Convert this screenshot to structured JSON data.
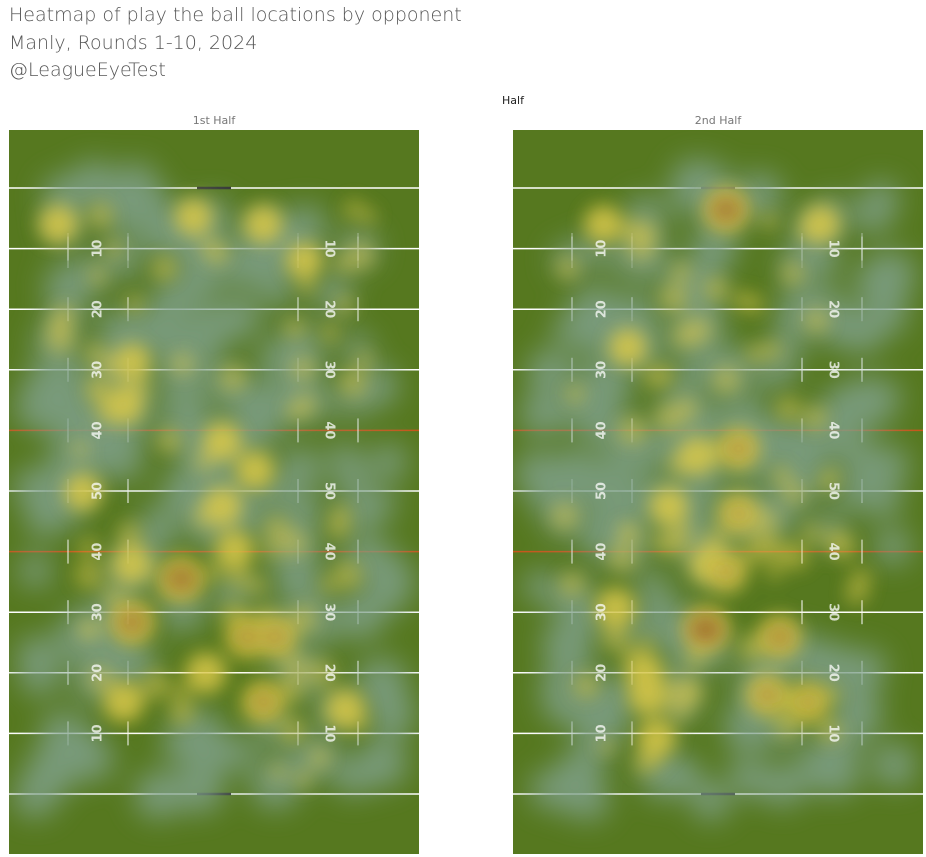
{
  "title": {
    "line1": "Heatmap of play the ball locations by opponent",
    "line2": "Manly, Rounds 1-10, 2024",
    "line3": "@LeagueEyeTest"
  },
  "facet": {
    "header": "Half"
  },
  "colors": {
    "field": "#56781f",
    "lines": "#ffffff",
    "forty_lines": "#c8561a",
    "heat_low": "#7fa08a",
    "heat_mid": "#d9c84a",
    "heat_high": "#8a4a26"
  },
  "chart_data": [
    {
      "type": "heatmap",
      "panel": "1st Half",
      "field_markings": [
        "10",
        "20",
        "30",
        "40",
        "50",
        "40",
        "30",
        "20",
        "10"
      ],
      "hotspots": [
        {
          "x": 0.12,
          "y": 0.13,
          "v": 0.55
        },
        {
          "x": 0.45,
          "y": 0.12,
          "v": 0.5
        },
        {
          "x": 0.62,
          "y": 0.13,
          "v": 0.55
        },
        {
          "x": 0.72,
          "y": 0.18,
          "v": 0.45
        },
        {
          "x": 0.3,
          "y": 0.32,
          "v": 0.45
        },
        {
          "x": 0.28,
          "y": 0.38,
          "v": 0.6
        },
        {
          "x": 0.52,
          "y": 0.43,
          "v": 0.55
        },
        {
          "x": 0.6,
          "y": 0.47,
          "v": 0.55
        },
        {
          "x": 0.18,
          "y": 0.5,
          "v": 0.5
        },
        {
          "x": 0.52,
          "y": 0.52,
          "v": 0.6
        },
        {
          "x": 0.42,
          "y": 0.62,
          "v": 0.9
        },
        {
          "x": 0.3,
          "y": 0.6,
          "v": 0.6
        },
        {
          "x": 0.55,
          "y": 0.58,
          "v": 0.55
        },
        {
          "x": 0.3,
          "y": 0.68,
          "v": 0.85
        },
        {
          "x": 0.58,
          "y": 0.7,
          "v": 0.75
        },
        {
          "x": 0.65,
          "y": 0.7,
          "v": 0.75
        },
        {
          "x": 0.48,
          "y": 0.75,
          "v": 0.65
        },
        {
          "x": 0.28,
          "y": 0.79,
          "v": 0.65
        },
        {
          "x": 0.62,
          "y": 0.79,
          "v": 0.75
        },
        {
          "x": 0.82,
          "y": 0.8,
          "v": 0.6
        }
      ]
    },
    {
      "type": "heatmap",
      "panel": "2nd Half",
      "field_markings": [
        "10",
        "20",
        "30",
        "40",
        "50",
        "40",
        "30",
        "20",
        "10"
      ],
      "hotspots": [
        {
          "x": 0.52,
          "y": 0.11,
          "v": 0.9
        },
        {
          "x": 0.22,
          "y": 0.13,
          "v": 0.5
        },
        {
          "x": 0.75,
          "y": 0.13,
          "v": 0.55
        },
        {
          "x": 0.28,
          "y": 0.3,
          "v": 0.5
        },
        {
          "x": 0.55,
          "y": 0.44,
          "v": 0.75
        },
        {
          "x": 0.45,
          "y": 0.45,
          "v": 0.55
        },
        {
          "x": 0.38,
          "y": 0.52,
          "v": 0.55
        },
        {
          "x": 0.55,
          "y": 0.53,
          "v": 0.7
        },
        {
          "x": 0.48,
          "y": 0.6,
          "v": 0.65
        },
        {
          "x": 0.52,
          "y": 0.61,
          "v": 0.7
        },
        {
          "x": 0.25,
          "y": 0.66,
          "v": 0.6
        },
        {
          "x": 0.47,
          "y": 0.69,
          "v": 0.95
        },
        {
          "x": 0.65,
          "y": 0.7,
          "v": 0.8
        },
        {
          "x": 0.32,
          "y": 0.75,
          "v": 0.55
        },
        {
          "x": 0.33,
          "y": 0.78,
          "v": 0.65
        },
        {
          "x": 0.62,
          "y": 0.78,
          "v": 0.75
        },
        {
          "x": 0.72,
          "y": 0.79,
          "v": 0.7
        },
        {
          "x": 0.35,
          "y": 0.84,
          "v": 0.55
        }
      ]
    }
  ]
}
